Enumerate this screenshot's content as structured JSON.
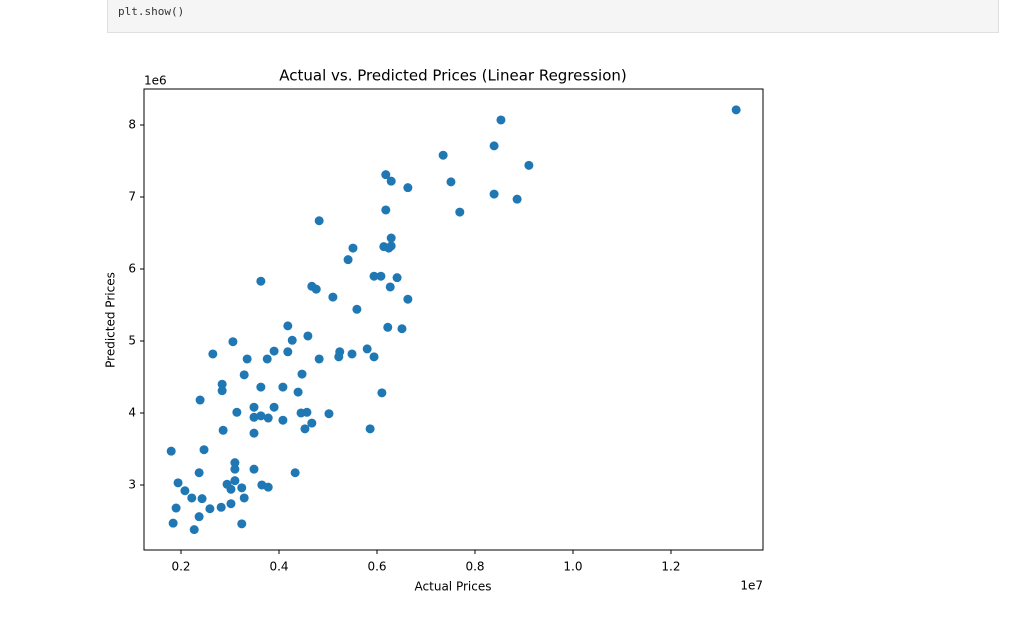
{
  "code_cell": {
    "lines": [
      "plt.show()"
    ]
  },
  "chart_data": {
    "type": "scatter",
    "title": "Actual vs. Predicted Prices (Linear Regression)",
    "x_label": "Actual Prices",
    "y_label": "Predicted Prices",
    "x_offset_label": "1e7",
    "y_offset_label": "1e6",
    "x": [
      1.333,
      0.853,
      0.735,
      0.839,
      0.91,
      0.618,
      0.629,
      0.751,
      0.663,
      0.839,
      0.886,
      0.769,
      0.618,
      0.482,
      0.551,
      0.541,
      0.629,
      0.614,
      0.624,
      0.629,
      0.594,
      0.608,
      0.641,
      0.363,
      0.627,
      0.467,
      0.476,
      0.51,
      0.663,
      0.559,
      0.418,
      0.622,
      0.651,
      0.459,
      0.427,
      0.306,
      0.58,
      0.39,
      0.418,
      0.524,
      0.549,
      0.265,
      0.522,
      0.594,
      0.335,
      0.376,
      0.482,
      0.329,
      0.447,
      0.284,
      0.363,
      0.408,
      0.284,
      0.439,
      0.61,
      0.239,
      0.349,
      0.39,
      0.314,
      0.457,
      0.445,
      0.502,
      0.349,
      0.363,
      0.378,
      0.408,
      0.467,
      0.286,
      0.349,
      0.453,
      0.586,
      0.18,
      0.247,
      0.31,
      0.31,
      0.349,
      0.237,
      0.433,
      0.194,
      0.31,
      0.294,
      0.365,
      0.378,
      0.302,
      0.324,
      0.208,
      0.222,
      0.243,
      0.329,
      0.302,
      0.19,
      0.282,
      0.259,
      0.237,
      0.184,
      0.324,
      0.227
    ],
    "values": [
      8.21,
      8.07,
      7.58,
      7.71,
      7.44,
      7.31,
      7.22,
      7.21,
      7.13,
      7.04,
      6.97,
      6.79,
      6.82,
      6.67,
      6.29,
      6.13,
      6.43,
      6.31,
      6.29,
      6.32,
      5.9,
      5.9,
      5.88,
      5.83,
      5.75,
      5.76,
      5.72,
      5.61,
      5.58,
      5.44,
      5.21,
      5.19,
      5.17,
      5.07,
      5.01,
      4.99,
      4.89,
      4.86,
      4.85,
      4.85,
      4.82,
      4.82,
      4.78,
      4.78,
      4.75,
      4.75,
      4.75,
      4.53,
      4.54,
      4.4,
      4.36,
      4.36,
      4.31,
      4.29,
      4.28,
      4.18,
      4.08,
      4.08,
      4.01,
      4.01,
      4.0,
      3.99,
      3.94,
      3.96,
      3.93,
      3.9,
      3.86,
      3.76,
      3.72,
      3.78,
      3.78,
      3.47,
      3.49,
      3.31,
      3.22,
      3.22,
      3.17,
      3.17,
      3.03,
      3.06,
      3.01,
      3.0,
      2.97,
      2.94,
      2.96,
      2.92,
      2.82,
      2.81,
      2.82,
      2.74,
      2.68,
      2.69,
      2.67,
      2.56,
      2.47,
      2.46,
      2.38
    ],
    "color": "#1f77b4",
    "xlim": [
      0.1245,
      1.3878
    ],
    "ylim": [
      2.097,
      8.5
    ],
    "xticks": [
      0.2,
      0.4,
      0.6,
      0.8,
      {
        "value": 1,
        "label": "1.0"
      },
      1.2
    ],
    "yticks": [
      3,
      4,
      5,
      6,
      7,
      8
    ],
    "grid": false
  }
}
